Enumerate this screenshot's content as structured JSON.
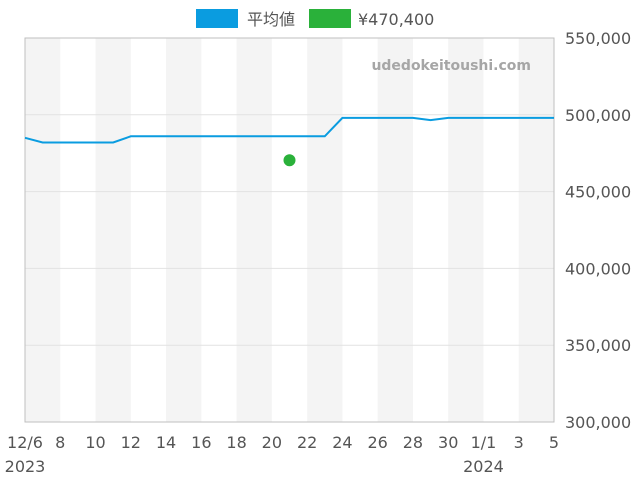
{
  "chart_data": {
    "type": "line",
    "watermark": "udedokeitoushi.com",
    "x": [
      "2023-12-06",
      "2023-12-07",
      "2023-12-08",
      "2023-12-09",
      "2023-12-10",
      "2023-12-11",
      "2023-12-12",
      "2023-12-13",
      "2023-12-14",
      "2023-12-15",
      "2023-12-16",
      "2023-12-17",
      "2023-12-18",
      "2023-12-19",
      "2023-12-20",
      "2023-12-21",
      "2023-12-22",
      "2023-12-23",
      "2023-12-24",
      "2023-12-25",
      "2023-12-26",
      "2023-12-27",
      "2023-12-28",
      "2023-12-29",
      "2023-12-30",
      "2023-12-31",
      "2024-01-01",
      "2024-01-02",
      "2024-01-03",
      "2024-01-04",
      "2024-01-05"
    ],
    "series": [
      {
        "name": "平均値",
        "color": "#0a9ce0",
        "values": [
          485000,
          482000,
          482000,
          482000,
          482000,
          482000,
          486000,
          486000,
          486000,
          486000,
          486000,
          486000,
          486000,
          486000,
          486000,
          486000,
          486000,
          486000,
          498000,
          498000,
          498000,
          498000,
          498000,
          496500,
          498000,
          498000,
          498000,
          498000,
          498000,
          498000,
          498000
        ]
      },
      {
        "name": "¥470,400",
        "color": "#2ab13a",
        "type": "scatter",
        "points": [
          {
            "x": "2023-12-21",
            "y": 470400
          }
        ]
      }
    ],
    "ylim": [
      300000,
      550000
    ],
    "y_ticks": [
      300000,
      350000,
      400000,
      450000,
      500000,
      550000
    ],
    "y_tick_labels": [
      "300,000",
      "350,000",
      "400,000",
      "450,000",
      "500,000",
      "550,000"
    ],
    "x_tick_labels": [
      "12/6",
      "8",
      "10",
      "12",
      "14",
      "16",
      "18",
      "20",
      "22",
      "24",
      "26",
      "28",
      "30",
      "1/1",
      "3",
      "5"
    ],
    "x_tick_dates": [
      "2023-12-06",
      "2023-12-08",
      "2023-12-10",
      "2023-12-12",
      "2023-12-14",
      "2023-12-16",
      "2023-12-18",
      "2023-12-20",
      "2023-12-22",
      "2023-12-24",
      "2023-12-26",
      "2023-12-28",
      "2023-12-30",
      "2024-01-01",
      "2024-01-03",
      "2024-01-05"
    ],
    "year_labels": [
      {
        "date": "2023-12-06",
        "label": "2023"
      },
      {
        "date": "2024-01-01",
        "label": "2024"
      }
    ],
    "legend_position": "top-center",
    "grid": true,
    "y_axis_side": "right"
  }
}
